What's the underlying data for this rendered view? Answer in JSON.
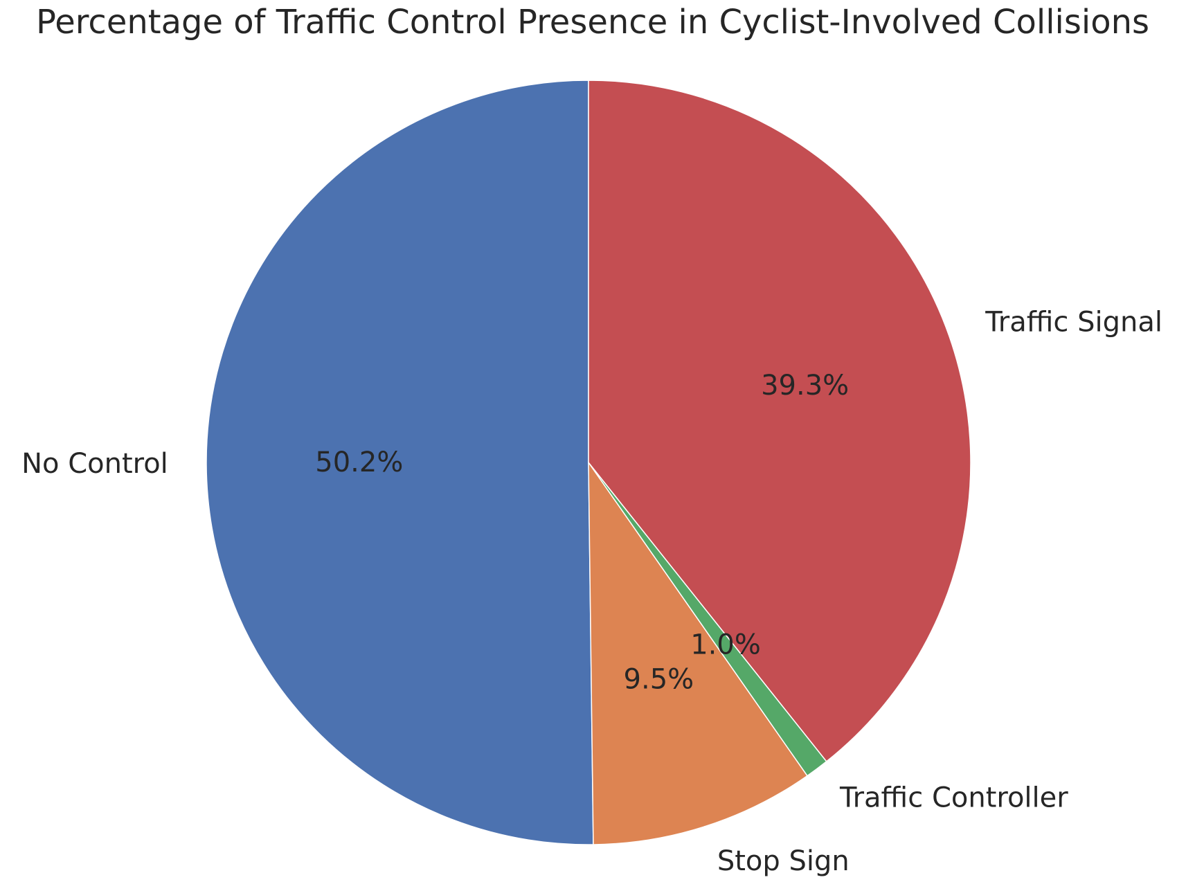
{
  "chart_data": {
    "type": "pie",
    "title": "Percentage of Traffic Control Presence in Cyclist-Involved Collisions",
    "categories": [
      "No Control",
      "Stop Sign",
      "Traffic Controller",
      "Traffic Signal"
    ],
    "values": [
      50.2,
      9.5,
      1.0,
      39.3
    ],
    "percent_labels": [
      "50.2%",
      "9.5%",
      "1.0%",
      "39.3%"
    ],
    "colors": [
      "#4c72b0",
      "#dd8452",
      "#55a868",
      "#c44e52"
    ],
    "start_angle_deg": 90,
    "direction": "counterclockwise",
    "legend": "none"
  }
}
